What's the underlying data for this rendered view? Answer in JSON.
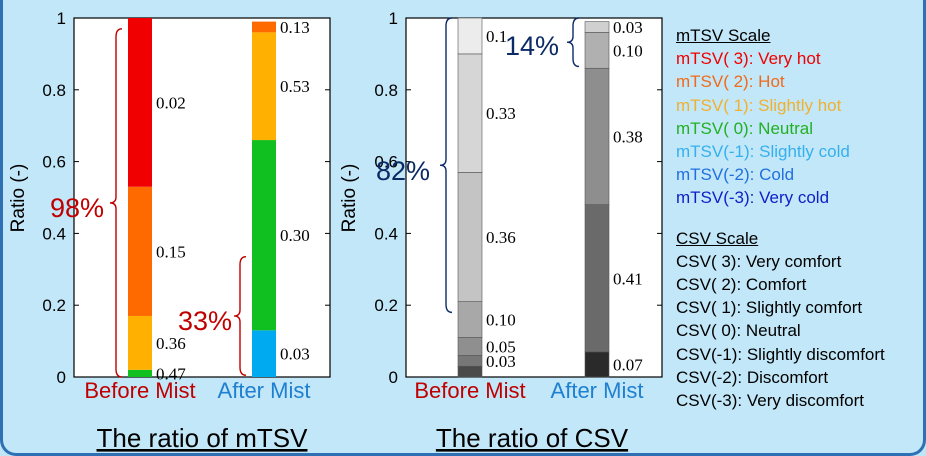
{
  "chart_data": [
    {
      "type": "bar",
      "stacked": true,
      "title": "The ratio of mTSV",
      "ylabel": "Ratio (-)",
      "ylim": [
        0,
        1
      ],
      "yticks": [
        "0",
        "0.2",
        "0.4",
        "0.6",
        "0.8",
        "1"
      ],
      "categories": [
        "Before Mist",
        "After Mist"
      ],
      "category_colors": [
        "#c00000",
        "#1f7fd0"
      ],
      "series": [
        {
          "name": "mTSV(-3): Very cold",
          "color": "#1030c8",
          "values": [
            0,
            0
          ]
        },
        {
          "name": "mTSV(-2): Cold",
          "color": "#2090e8",
          "values": [
            0,
            0
          ]
        },
        {
          "name": "mTSV(-1): Slightly cold",
          "color": "#00aaf0",
          "values": [
            0,
            0.13
          ]
        },
        {
          "name": "mTSV(  0): Neutral",
          "color": "#10c020",
          "values": [
            0.02,
            0.53
          ]
        },
        {
          "name": "mTSV(  1): Slightly hot",
          "color": "#ffb000",
          "values": [
            0.15,
            0.3
          ]
        },
        {
          "name": "mTSV(  2): Hot",
          "color": "#ff6a00",
          "values": [
            0.36,
            0.03
          ]
        },
        {
          "name": "mTSV(  3): Very hot",
          "color": "#f00000",
          "values": [
            0.47,
            0
          ]
        }
      ],
      "data_labels": [
        [
          "0.02",
          "0.15",
          "0.36",
          "0.47"
        ],
        [
          "0.13",
          "0.53",
          "0.30",
          "0.03"
        ]
      ],
      "annotations": [
        {
          "text": "98%",
          "color": "#c00000"
        },
        {
          "text": "33%",
          "color": "#c00000"
        }
      ]
    },
    {
      "type": "bar",
      "stacked": true,
      "title": "The ratio of CSV",
      "ylabel": "Ratio (-)",
      "ylim": [
        0,
        1
      ],
      "yticks": [
        "0",
        "0.2",
        "0.4",
        "0.6",
        "0.8",
        "1"
      ],
      "categories": [
        "Before Mist",
        "After Mist"
      ],
      "category_colors": [
        "#c00000",
        "#1f7fd0"
      ],
      "series": [
        {
          "name": "CSV(-3): Very discomfort",
          "colors": [
            "#4a4a4a",
            "#2a2a2a"
          ],
          "values": [
            0.03,
            0.07
          ]
        },
        {
          "name": "CSV(-2): Discomfort",
          "colors": [
            "#777777",
            "#6a6a6a"
          ],
          "values": [
            0.03,
            0.41
          ]
        },
        {
          "name": "CSV(-1): Slightly discomfort",
          "colors": [
            "#8f8f8f",
            "#8e8e8e"
          ],
          "values": [
            0.05,
            0.38
          ]
        },
        {
          "name": "CSV(  0): Neutral",
          "colors": [
            "#a8a8a8",
            "#b0b0b0"
          ],
          "values": [
            0.1,
            0.1
          ]
        },
        {
          "name": "CSV(  1): Slightly comfort",
          "colors": [
            "#c4c4c4",
            "#d0d0d0"
          ],
          "values": [
            0.36,
            0.03
          ]
        },
        {
          "name": "CSV(  2): Comfort",
          "colors": [
            "#d6d6d6",
            "#e4e4e4"
          ],
          "values": [
            0.33,
            0
          ]
        },
        {
          "name": "CSV(  3): Very comfort",
          "colors": [
            "#ececec",
            "#f4f4f4"
          ],
          "values": [
            0.1,
            0
          ]
        }
      ],
      "data_labels": [
        [
          "0.1",
          "0.33",
          "0.36",
          "0.10",
          "0.05",
          "0.03"
        ],
        [
          "0.03",
          "0.10",
          "0.38",
          "0.41",
          "0.07"
        ]
      ],
      "annotations": [
        {
          "text": "82%",
          "color": "#0b2a66"
        },
        {
          "text": "14%",
          "color": "#0b2a66"
        }
      ]
    }
  ],
  "legend": {
    "mtsv_header": "mTSV Scale",
    "mtsv": [
      {
        "label": "mTSV(  3): Very hot",
        "color": "#f00000"
      },
      {
        "label": "mTSV(  2): Hot",
        "color": "#f06a1a"
      },
      {
        "label": "mTSV(  1): Slightly hot",
        "color": "#f0b030"
      },
      {
        "label": "mTSV(  0): Neutral",
        "color": "#22b022"
      },
      {
        "label": "mTSV(-1): Slightly cold",
        "color": "#35b0ee"
      },
      {
        "label": "mTSV(-2): Cold",
        "color": "#2070e0"
      },
      {
        "label": "mTSV(-3): Very cold",
        "color": "#1020c8"
      }
    ],
    "csv_header": "CSV Scale",
    "csv": [
      "CSV(  3): Very comfort",
      "CSV(  2): Comfort",
      "CSV(  1): Slightly comfort",
      "CSV(  0): Neutral",
      "CSV(-1): Slightly discomfort",
      "CSV(-2): Discomfort",
      "CSV(-3): Very discomfort"
    ]
  }
}
